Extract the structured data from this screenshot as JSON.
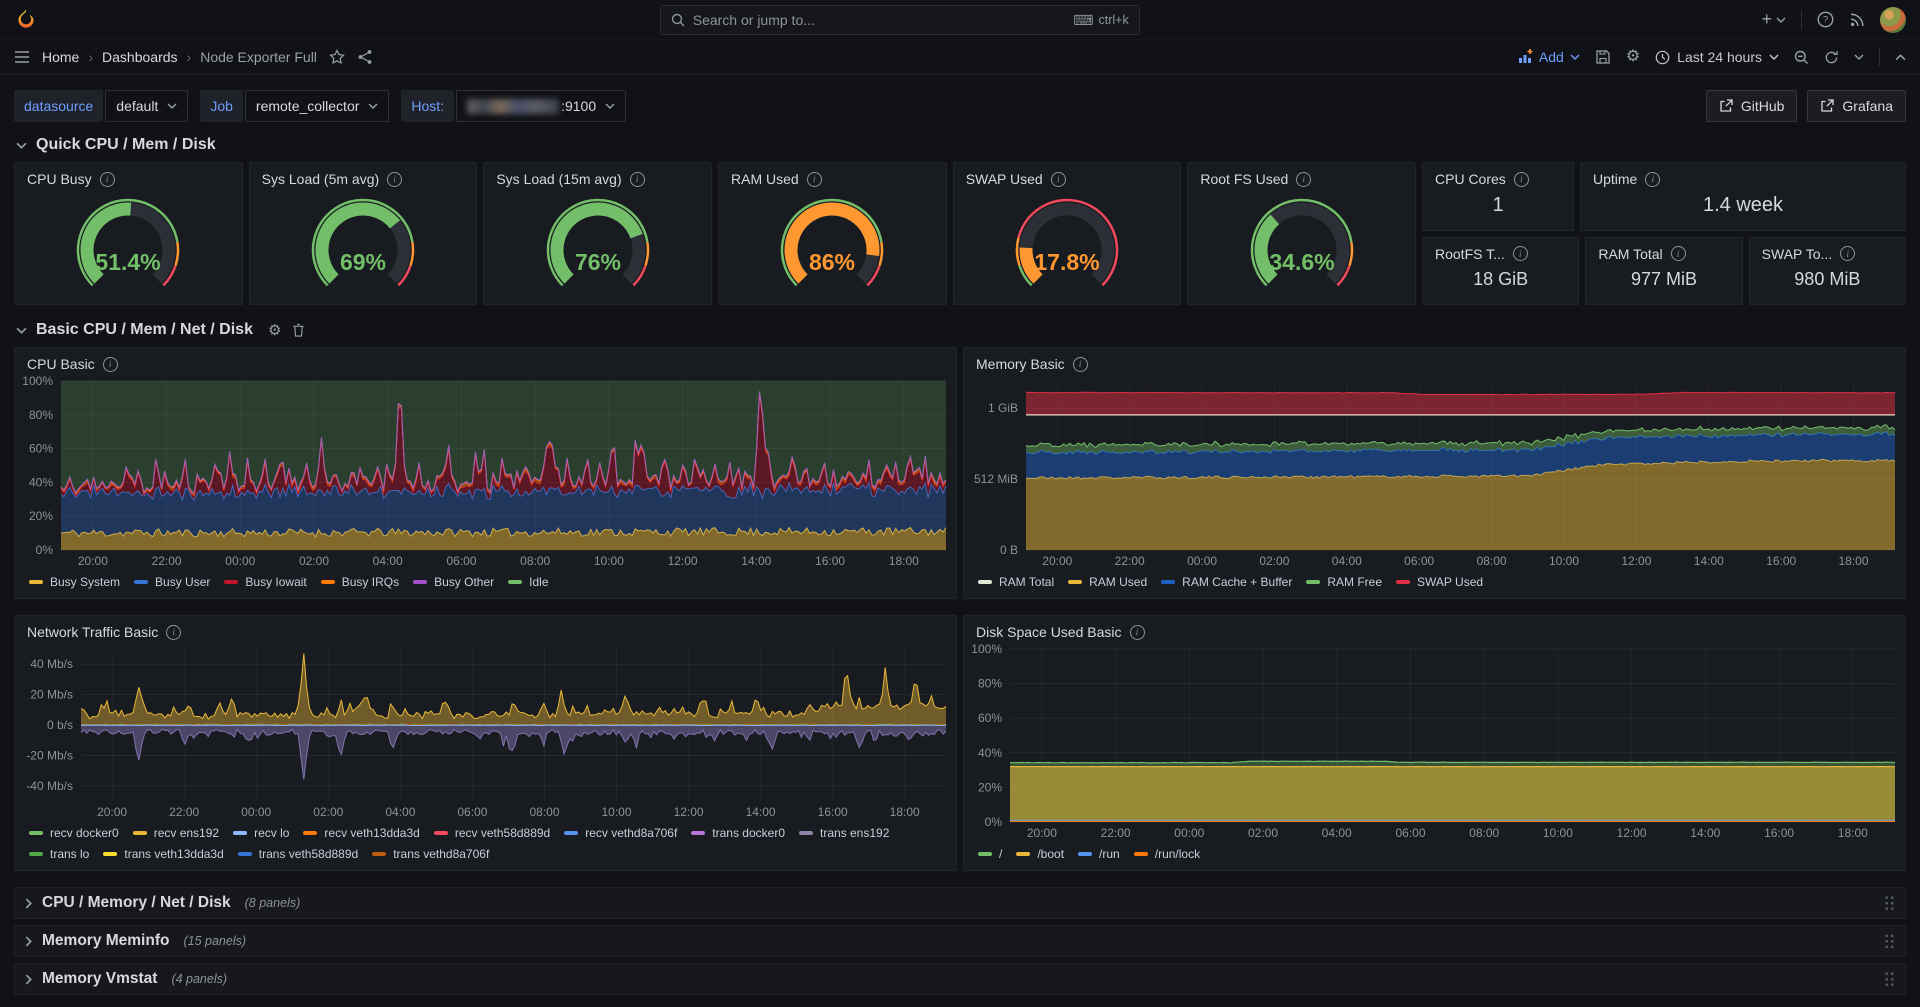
{
  "topbar": {
    "search_placeholder": "Search or jump to...",
    "search_shortcut": "ctrl+k"
  },
  "breadcrumb": {
    "items": [
      "Home",
      "Dashboards",
      "Node Exporter Full"
    ]
  },
  "toolbar": {
    "add_label": "Add",
    "time_label": "Last 24 hours"
  },
  "links": {
    "github": "GitHub",
    "grafana": "Grafana"
  },
  "variables": [
    {
      "label": "datasource",
      "value": "default",
      "redacted": false,
      "suffix": ""
    },
    {
      "label": "Job",
      "value": "remote_collector",
      "redacted": false,
      "suffix": ""
    },
    {
      "label": "Host:",
      "value": "",
      "redacted": true,
      "suffix": ":9100"
    }
  ],
  "sections": {
    "quick": "Quick CPU / Mem / Disk",
    "basic": "Basic CPU / Mem / Net / Disk"
  },
  "gauges": [
    {
      "title": "CPU Busy",
      "value": 51.4,
      "display": "51.4%",
      "color": "#73bf69",
      "ring": [
        [
          0,
          0.8,
          "#73bf69"
        ],
        [
          0.8,
          0.9,
          "#ff9830"
        ],
        [
          0.9,
          1,
          "#f2495c"
        ]
      ]
    },
    {
      "title": "Sys Load (5m avg)",
      "value": 69,
      "display": "69%",
      "color": "#73bf69",
      "ring": [
        [
          0,
          0.8,
          "#73bf69"
        ],
        [
          0.8,
          0.9,
          "#ff9830"
        ],
        [
          0.9,
          1,
          "#f2495c"
        ]
      ]
    },
    {
      "title": "Sys Load (15m avg)",
      "value": 76,
      "display": "76%",
      "color": "#73bf69",
      "ring": [
        [
          0,
          0.8,
          "#73bf69"
        ],
        [
          0.8,
          0.9,
          "#ff9830"
        ],
        [
          0.9,
          1,
          "#f2495c"
        ]
      ]
    },
    {
      "title": "RAM Used",
      "value": 86,
      "display": "86%",
      "color": "#ff9830",
      "ring": [
        [
          0,
          0.8,
          "#73bf69"
        ],
        [
          0.8,
          0.9,
          "#ff9830"
        ],
        [
          0.9,
          1,
          "#f2495c"
        ]
      ]
    },
    {
      "title": "SWAP Used",
      "value": 17.8,
      "display": "17.8%",
      "color": "#ff9830",
      "ring": [
        [
          0,
          0.1,
          "#73bf69"
        ],
        [
          0.1,
          0.22,
          "#ff9830"
        ],
        [
          0.22,
          1,
          "#f2495c"
        ]
      ]
    },
    {
      "title": "Root FS Used",
      "value": 34.6,
      "display": "34.6%",
      "color": "#73bf69",
      "ring": [
        [
          0,
          0.8,
          "#73bf69"
        ],
        [
          0.8,
          0.9,
          "#ff9830"
        ],
        [
          0.9,
          1,
          "#f2495c"
        ]
      ]
    }
  ],
  "stats_top": [
    {
      "title": "CPU Cores",
      "value": "1"
    },
    {
      "title": "Uptime",
      "value": "1.4 week"
    }
  ],
  "stats_bottom": [
    {
      "title": "RootFS T...",
      "value": "18 GiB"
    },
    {
      "title": "RAM Total",
      "value": "977 MiB"
    },
    {
      "title": "SWAP To...",
      "value": "980 MiB"
    }
  ],
  "xticks": [
    "20:00",
    "22:00",
    "00:00",
    "02:00",
    "04:00",
    "06:00",
    "08:00",
    "10:00",
    "12:00",
    "14:00",
    "16:00",
    "18:00"
  ],
  "chart_data": {
    "cpu": {
      "title": "CPU Basic",
      "type": "area",
      "ylim": [
        0,
        100
      ],
      "axis_width": 46,
      "yticks": [
        {
          "v": 0,
          "label": "0%"
        },
        {
          "v": 20,
          "label": "20%"
        },
        {
          "v": 40,
          "label": "40%"
        },
        {
          "v": 60,
          "label": "60%"
        },
        {
          "v": 80,
          "label": "80%"
        },
        {
          "v": 100,
          "label": "100%"
        }
      ],
      "series": [
        {
          "name": "Busy System",
          "color": "#eab839",
          "mode": "area",
          "stack": true,
          "fillOpacity": 0.5,
          "lineWidth": 1,
          "seed": 11,
          "base": [
            [
              0,
              10
            ],
            [
              1,
              11
            ]
          ],
          "noise": 2.5
        },
        {
          "name": "Busy User",
          "color": "#3274d9",
          "mode": "area",
          "stack": true,
          "fillOpacity": 0.32,
          "lineWidth": 1,
          "seed": 12,
          "base": [
            [
              0,
              24
            ],
            [
              1,
              25
            ]
          ],
          "noise": 3
        },
        {
          "name": "Busy Iowait",
          "color": "#c4162a",
          "mode": "area",
          "stack": true,
          "fillOpacity": 0.38,
          "lineWidth": 1,
          "seed": 13,
          "base": [
            [
              0,
              3
            ],
            [
              1,
              4
            ]
          ],
          "noise": 2,
          "spikes": [
            [
              0.383,
              62
            ],
            [
              0.79,
              55
            ]
          ],
          "randomSpikes": {
            "n": 95,
            "min": 2,
            "max": 16,
            "seed": 7
          }
        },
        {
          "name": "Busy IRQs",
          "color": "#ff780a",
          "mode": "area",
          "stack": true,
          "fillOpacity": 0.5,
          "lineWidth": 1,
          "seed": 14,
          "base": [
            [
              0,
              1.2
            ],
            [
              1,
              1.5
            ]
          ],
          "noise": 0.8
        },
        {
          "name": "Busy Other",
          "color": "#a352cc",
          "mode": "area",
          "stack": true,
          "fillOpacity": 0.5,
          "lineWidth": 1,
          "seed": 15,
          "base": [
            [
              0,
              0.4
            ],
            [
              1,
              0.4
            ]
          ],
          "noise": 0.3
        },
        {
          "name": "Idle",
          "color": "#73bf69",
          "mode": "area",
          "fillTo": 100,
          "fillOpacity": 0.22,
          "lineWidth": 0,
          "seed": 16
        }
      ],
      "legend": [
        {
          "label": "Busy System",
          "color": "#eab839"
        },
        {
          "label": "Busy User",
          "color": "#3274d9"
        },
        {
          "label": "Busy Iowait",
          "color": "#c4162a"
        },
        {
          "label": "Busy IRQs",
          "color": "#ff780a"
        },
        {
          "label": "Busy Other",
          "color": "#a352cc"
        },
        {
          "label": "Idle",
          "color": "#73bf69"
        }
      ]
    },
    "memory": {
      "title": "Memory Basic",
      "type": "area",
      "ylim": [
        0,
        1220
      ],
      "axis_width": 62,
      "yticks": [
        {
          "v": 0,
          "label": "0 B"
        },
        {
          "v": 512,
          "label": "512 MiB"
        },
        {
          "v": 1024,
          "label": "1 GiB"
        }
      ],
      "series": [
        {
          "name": "RAM Used",
          "color": "#eab839",
          "mode": "area",
          "stack": true,
          "fillOpacity": 0.5,
          "lineWidth": 1,
          "seed": 21,
          "base": [
            [
              0,
              520
            ],
            [
              0.58,
              535
            ],
            [
              0.66,
              615
            ],
            [
              0.8,
              640
            ],
            [
              1,
              648
            ]
          ],
          "noise": 10
        },
        {
          "name": "RAM Cache + Buffer",
          "color": "#1f60c4",
          "mode": "area",
          "stack": true,
          "fillOpacity": 0.5,
          "lineWidth": 1,
          "seed": 22,
          "base": [
            [
              0,
              185
            ],
            [
              1,
              190
            ]
          ],
          "noise": 10
        },
        {
          "name": "RAM Free",
          "color": "#73bf69",
          "mode": "area",
          "stack": true,
          "fillOpacity": 0.4,
          "lineWidth": 1,
          "seed": 23,
          "base": [
            [
              0,
              55
            ],
            [
              1,
              48
            ]
          ],
          "noise": 8
        },
        {
          "name": "RAM Total",
          "color": "#dcead3",
          "mode": "line",
          "lineWidth": 1.5,
          "seed": 24,
          "base": [
            [
              0,
              977
            ],
            [
              1,
              977
            ]
          ],
          "noise": 0
        },
        {
          "name": "SWAP Used",
          "color": "#e02f44",
          "mode": "area",
          "offset": 977,
          "fillOpacity": 0.5,
          "lineWidth": 1,
          "seed": 25,
          "base": [
            [
              0,
              160
            ],
            [
              0.42,
              158
            ],
            [
              0.46,
              146
            ],
            [
              0.7,
              147
            ],
            [
              0.76,
              160
            ],
            [
              1,
              158
            ]
          ],
          "noise": 2
        }
      ],
      "legend": [
        {
          "label": "RAM Total",
          "color": "#dcead3"
        },
        {
          "label": "RAM Used",
          "color": "#eab839"
        },
        {
          "label": "RAM Cache + Buffer",
          "color": "#1f60c4"
        },
        {
          "label": "RAM Free",
          "color": "#73bf69"
        },
        {
          "label": "SWAP Used",
          "color": "#e02f44"
        }
      ]
    },
    "network": {
      "title": "Network Traffic Basic",
      "type": "area",
      "ylim": [
        -50,
        50
      ],
      "axis_width": 66,
      "yticks": [
        {
          "v": -40,
          "label": "-40 Mb/s"
        },
        {
          "v": -20,
          "label": "-20 Mb/s"
        },
        {
          "v": 0,
          "label": "0 b/s"
        },
        {
          "v": 20,
          "label": "20 Mb/s"
        },
        {
          "v": 40,
          "label": "40 Mb/s"
        }
      ],
      "series": [
        {
          "name": "recv ens192",
          "color": "#eab839",
          "mode": "area",
          "fillOpacity": 0.42,
          "lineWidth": 1,
          "seed": 31,
          "base": [
            [
              0,
              6
            ],
            [
              0.55,
              6.5
            ],
            [
              0.62,
              8
            ],
            [
              0.7,
              7
            ],
            [
              0.83,
              7
            ],
            [
              0.86,
              12
            ],
            [
              1,
              12
            ]
          ],
          "noise": 2.2,
          "spikes": [
            [
              0.066,
              20
            ],
            [
              0.175,
              13
            ],
            [
              0.257,
              37
            ],
            [
              0.33,
              15
            ],
            [
              0.42,
              13
            ],
            [
              0.5,
              10
            ],
            [
              0.555,
              16
            ],
            [
              0.63,
              14
            ],
            [
              0.72,
              11
            ],
            [
              0.78,
              13
            ],
            [
              0.885,
              27
            ],
            [
              0.93,
              25
            ],
            [
              0.965,
              22
            ]
          ],
          "randomSpikes": {
            "n": 70,
            "min": 1,
            "max": 7,
            "seed": 8
          }
        },
        {
          "name": "trans ens192",
          "color": "#8073b0",
          "mode": "area",
          "fillOpacity": 0.5,
          "lineWidth": 1,
          "seed": 32,
          "base": [
            [
              0,
              -4.5
            ],
            [
              1,
              -5
            ]
          ],
          "noise": 1.8,
          "spikes": [
            [
              0.066,
              -20
            ],
            [
              0.12,
              -10
            ],
            [
              0.257,
              -34
            ],
            [
              0.3,
              -16
            ],
            [
              0.36,
              -12
            ],
            [
              0.5,
              -10
            ],
            [
              0.56,
              -14
            ],
            [
              0.63,
              -9
            ],
            [
              0.8,
              -12
            ],
            [
              0.9,
              -9
            ]
          ],
          "randomSpikes": {
            "n": 60,
            "min": -6,
            "max": -1,
            "seed": 9
          }
        },
        {
          "name": "recv docker0",
          "color": "#73bf69",
          "mode": "line",
          "lineWidth": 1,
          "seed": 33,
          "base": [
            [
              0,
              0.3
            ],
            [
              1,
              0.3
            ]
          ],
          "noise": 0.2
        },
        {
          "name": "trans vethd8a706f",
          "color": "#c05a0f",
          "mode": "line",
          "lineWidth": 1,
          "seed": 34,
          "base": [
            [
              0,
              0.15
            ],
            [
              1,
              0.15
            ]
          ],
          "noise": 0.1
        },
        {
          "name": "recv lo",
          "color": "#8ab8ff",
          "mode": "line",
          "lineWidth": 1,
          "seed": 35,
          "base": [
            [
              0,
              -0.2
            ],
            [
              1,
              -0.2
            ]
          ],
          "noise": 0.12
        }
      ],
      "legend": [
        {
          "label": "recv docker0",
          "color": "#73bf69"
        },
        {
          "label": "recv ens192",
          "color": "#eab839"
        },
        {
          "label": "recv lo",
          "color": "#8ab8ff"
        },
        {
          "label": "recv veth13dda3d",
          "color": "#ff780a"
        },
        {
          "label": "recv veth58d889d",
          "color": "#f2495c"
        },
        {
          "label": "recv vethd8a706f",
          "color": "#5794f2"
        },
        {
          "label": "trans docker0",
          "color": "#b877d9"
        },
        {
          "label": "trans ens192",
          "color": "#8f82ab"
        },
        {
          "label": "trans lo",
          "color": "#56a64b"
        },
        {
          "label": "trans veth13dda3d",
          "color": "#fade2a"
        },
        {
          "label": "trans veth58d889d",
          "color": "#3274d9"
        },
        {
          "label": "trans vethd8a706f",
          "color": "#c05a0f"
        }
      ]
    },
    "disk": {
      "title": "Disk Space Used Basic",
      "type": "area",
      "ylim": [
        0,
        100
      ],
      "axis_width": 46,
      "yticks": [
        {
          "v": 0,
          "label": "0%"
        },
        {
          "v": 20,
          "label": "20%"
        },
        {
          "v": 40,
          "label": "40%"
        },
        {
          "v": 60,
          "label": "60%"
        },
        {
          "v": 80,
          "label": "80%"
        },
        {
          "v": 100,
          "label": "100%"
        }
      ],
      "series": [
        {
          "name": "/",
          "color": "#73bf69",
          "mode": "area",
          "fillOpacity": 0.35,
          "lineWidth": 1.2,
          "seed": 41,
          "base": [
            [
              0,
              34.3
            ],
            [
              0.25,
              34.3
            ],
            [
              0.27,
              35.1
            ],
            [
              0.42,
              35.1
            ],
            [
              0.44,
              34.5
            ],
            [
              1,
              34.5
            ]
          ],
          "noise": 0.12
        },
        {
          "name": "/boot",
          "color": "#eab839",
          "mode": "area",
          "fillOpacity": 0.55,
          "lineWidth": 1.2,
          "seed": 42,
          "base": [
            [
              0,
              32
            ],
            [
              1,
              32
            ]
          ],
          "noise": 0.05
        },
        {
          "name": "/run",
          "color": "#5794f2",
          "mode": "line",
          "lineWidth": 1,
          "seed": 43,
          "base": [
            [
              0,
              1
            ],
            [
              1,
              1
            ]
          ],
          "noise": 0.05
        },
        {
          "name": "/run/lock",
          "color": "#ff780a",
          "mode": "line",
          "lineWidth": 1,
          "seed": 44,
          "base": [
            [
              0,
              0.4
            ],
            [
              1,
              0.4
            ]
          ],
          "noise": 0.03
        }
      ],
      "legend": [
        {
          "label": "/",
          "color": "#73bf69"
        },
        {
          "label": "/boot",
          "color": "#eab839"
        },
        {
          "label": "/run",
          "color": "#5794f2"
        },
        {
          "label": "/run/lock",
          "color": "#ff780a"
        }
      ]
    }
  },
  "collapsed_rows": [
    {
      "title": "CPU / Memory / Net / Disk",
      "count": "(8 panels)"
    },
    {
      "title": "Memory Meminfo",
      "count": "(15 panels)"
    },
    {
      "title": "Memory Vmstat",
      "count": "(4 panels)"
    }
  ]
}
